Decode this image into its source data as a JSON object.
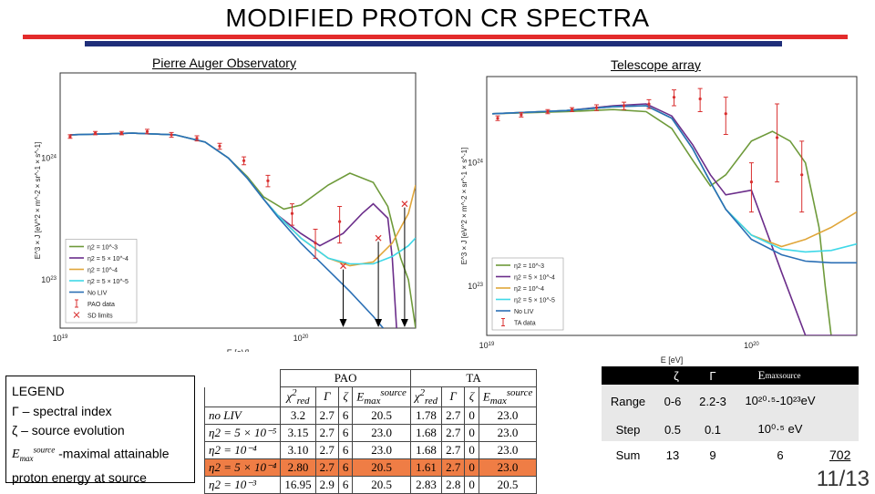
{
  "slide": {
    "title": "MODIFIED PROTON CR SPECTRA",
    "page": "11/13",
    "side_number": "702"
  },
  "colors": {
    "accent_red": "#e32b2b",
    "accent_navy": "#1f2e7a",
    "eta_1e-3": "#6e9a3a",
    "eta_5e-4": "#6b2d8a",
    "eta_1e-4": "#e0a63a",
    "eta_5e-5": "#3fd8e8",
    "no_liv": "#2a6fb5",
    "data": "#d93030",
    "highlight_row": "#ef7d45"
  },
  "chart_data": [
    {
      "type": "line",
      "title": "Pierre Auger Observatory",
      "xlabel": "E [eV]",
      "ylabel": "E^3 × J [eV^2 × m^-2 × sr^-1 × s^-1]",
      "x_ticks": [
        "10^19",
        "10^20"
      ],
      "y_ticks": [
        "10^24",
        "10^23"
      ],
      "xscale": "log",
      "yscale": "log",
      "xlim": [
        1e+19,
        3e+20
      ],
      "ylim": [
        4e+22,
        5e+24
      ],
      "legend_position": "bottom-left",
      "legend": [
        "η2 = 10^-3",
        "η2 = 5 × 10^-4",
        "η2 = 10^-4",
        "η2 = 5 × 10^-5",
        "No LIV",
        "PAO data",
        "SD limits"
      ],
      "series": [
        {
          "name": "η2 = 10^-3",
          "color_key": "eta_1e-3",
          "x": [
            1.1e+19,
            2e+19,
            3e+19,
            4e+19,
            5e+19,
            6e+19,
            7e+19,
            8.5e+19,
            1e+20,
            1.3e+20,
            1.6e+20,
            2e+20,
            2.3e+20,
            2.6e+20,
            2.8e+20,
            3e+20
          ],
          "y": [
            1.55e+24,
            1.6e+24,
            1.55e+24,
            1.35e+24,
            1e+24,
            7e+23,
            4.8e+23,
            3.8e+23,
            4.1e+23,
            6e+23,
            7.5e+23,
            6.3e+23,
            4e+23,
            1.5e+23,
            1e+23,
            4e+22
          ]
        },
        {
          "name": "η2 = 5 × 10^-4",
          "color_key": "eta_5e-4",
          "x": [
            1.1e+19,
            2e+19,
            3e+19,
            4e+19,
            5e+19,
            6e+19,
            7e+19,
            8e+19,
            1e+20,
            1.2e+20,
            1.5e+20,
            1.8e+20,
            2e+20,
            2.3e+20,
            2.4e+20,
            2.5e+20
          ],
          "y": [
            1.55e+24,
            1.6e+24,
            1.55e+24,
            1.35e+24,
            1e+24,
            6.8e+23,
            4.6e+23,
            3.4e+23,
            2.4e+23,
            1.9e+23,
            2.4e+23,
            3.5e+23,
            4.2e+23,
            3.2e+23,
            1.5e+23,
            4e+22
          ]
        },
        {
          "name": "η2 = 10^-4",
          "color_key": "eta_1e-4",
          "x": [
            1.1e+19,
            2e+19,
            3e+19,
            4e+19,
            5e+19,
            6e+19,
            7e+19,
            8e+19,
            1e+20,
            1.3e+20,
            1.6e+20,
            2e+20,
            2.4e+20,
            2.8e+20,
            3e+20
          ],
          "y": [
            1.55e+24,
            1.6e+24,
            1.55e+24,
            1.35e+24,
            1e+24,
            6.8e+23,
            4.6e+23,
            3.4e+23,
            2.2e+23,
            1.5e+23,
            1.3e+23,
            1.4e+23,
            2e+23,
            3.5e+23,
            6e+23
          ]
        },
        {
          "name": "η2 = 5 × 10^-5",
          "color_key": "eta_5e-5",
          "x": [
            1.1e+19,
            2e+19,
            3e+19,
            4e+19,
            5e+19,
            6e+19,
            7e+19,
            8e+19,
            1e+20,
            1.3e+20,
            1.6e+20,
            2e+20,
            2.4e+20,
            2.8e+20,
            3e+20
          ],
          "y": [
            1.55e+24,
            1.6e+24,
            1.55e+24,
            1.35e+24,
            1e+24,
            6.8e+23,
            4.6e+23,
            3.4e+23,
            2.2e+23,
            1.5e+23,
            1.35e+23,
            1.35e+23,
            1.55e+23,
            1.9e+23,
            2.2e+23
          ]
        },
        {
          "name": "No LIV",
          "color_key": "no_liv",
          "x": [
            1.1e+19,
            2e+19,
            3e+19,
            4e+19,
            5e+19,
            6e+19,
            7e+19,
            8e+19,
            1e+20,
            1.3e+20,
            1.6e+20,
            2e+20,
            2.2e+20
          ],
          "y": [
            1.55e+24,
            1.6e+24,
            1.55e+24,
            1.35e+24,
            1e+24,
            6.8e+23,
            4.6e+23,
            3.3e+23,
            2e+23,
            1.2e+23,
            8e+22,
            5e+22,
            4e+22
          ]
        }
      ],
      "pao_data": {
        "x": [
          1.1e+19,
          1.4e+19,
          1.8e+19,
          2.3e+19,
          2.9e+19,
          3.7e+19,
          4.6e+19,
          5.8e+19,
          7.3e+19,
          9.2e+19,
          1.15e+20,
          1.45e+20
        ],
        "y": [
          1.5e+24,
          1.6e+24,
          1.6e+24,
          1.65e+24,
          1.55e+24,
          1.45e+24,
          1.25e+24,
          9.5e+23,
          6.5e+23,
          3.5e+23,
          2e+23,
          3e+23
        ],
        "err_lo": [
          1.45e+24,
          1.55e+24,
          1.55e+24,
          1.58e+24,
          1.48e+24,
          1.38e+24,
          1.18e+24,
          8.8e+23,
          5.8e+23,
          2.8e+23,
          1.5e+23,
          2e+23
        ],
        "err_hi": [
          1.55e+24,
          1.65e+24,
          1.65e+24,
          1.72e+24,
          1.62e+24,
          1.52e+24,
          1.32e+24,
          1.02e+24,
          7.2e+23,
          4.2e+23,
          2.6e+23,
          4e+23
        ]
      },
      "sd_limits": {
        "x": [
          1.5e+20,
          2.1e+20,
          2.7e+20
        ],
        "y": [
          1.3e+23,
          2.2e+23,
          4.2e+23
        ]
      },
      "arrows_from_sd_limits": true
    },
    {
      "type": "line",
      "title": "Telescope array",
      "xlabel": "E [eV]",
      "ylabel": "E^3 × J [eV^2 × m^-2 × sr^-1 × s^-1]",
      "x_ticks": [
        "10^19",
        "10^20"
      ],
      "y_ticks": [
        "10^24",
        "10^23"
      ],
      "xscale": "log",
      "yscale": "log",
      "xlim": [
        1e+19,
        2.5e+20
      ],
      "ylim": [
        4e+22,
        5e+24
      ],
      "legend_position": "bottom-left",
      "legend": [
        "η2 = 10^-3",
        "η2 = 5 × 10^-4",
        "η2 = 10^-4",
        "η2 = 5 × 10^-5",
        "No LIV",
        "TA data"
      ],
      "series": [
        {
          "name": "η2 = 10^-3",
          "color_key": "eta_1e-3",
          "x": [
            1.05e+19,
            2e+19,
            3e+19,
            4e+19,
            5e+19,
            6e+19,
            7e+19,
            8e+19,
            1e+20,
            1.2e+20,
            1.4e+20,
            1.6e+20,
            1.8e+20,
            1.9e+20,
            2e+20
          ],
          "y": [
            2.5e+24,
            2.6e+24,
            2.7e+24,
            2.6e+24,
            1.9e+24,
            1.05e+24,
            6.5e+23,
            8e+23,
            1.5e+24,
            1.8e+24,
            1.5e+24,
            1e+24,
            3e+23,
            1e+23,
            4e+22
          ]
        },
        {
          "name": "η2 = 5 × 10^-4",
          "color_key": "eta_5e-4",
          "x": [
            1.05e+19,
            2e+19,
            3e+19,
            4e+19,
            5e+19,
            6e+19,
            7e+19,
            8e+19,
            1e+20,
            1.3e+20,
            1.6e+20,
            2e+20,
            2.5e+20
          ],
          "y": [
            2.5e+24,
            2.65e+24,
            2.9e+24,
            3e+24,
            2.4e+24,
            1.4e+24,
            8e+23,
            5.5e+23,
            6e+23,
            1.3e+23,
            4e+22,
            4e+22,
            4e+22
          ]
        },
        {
          "name": "η2 = 10^-4",
          "color_key": "eta_1e-4",
          "x": [
            1.05e+19,
            2e+19,
            3e+19,
            4e+19,
            5e+19,
            6e+19,
            7e+19,
            8e+19,
            1e+20,
            1.3e+20,
            1.6e+20,
            2e+20,
            2.5e+20
          ],
          "y": [
            2.5e+24,
            2.65e+24,
            2.85e+24,
            2.9e+24,
            2.3e+24,
            1.3e+24,
            7e+23,
            4.2e+23,
            2.6e+23,
            2.1e+23,
            2.4e+23,
            3e+23,
            4e+23
          ]
        },
        {
          "name": "η2 = 5 × 10^-5",
          "color_key": "eta_5e-5",
          "x": [
            1.05e+19,
            2e+19,
            3e+19,
            4e+19,
            5e+19,
            6e+19,
            7e+19,
            8e+19,
            1e+20,
            1.3e+20,
            1.6e+20,
            2e+20,
            2.5e+20
          ],
          "y": [
            2.5e+24,
            2.65e+24,
            2.85e+24,
            2.9e+24,
            2.3e+24,
            1.3e+24,
            7e+23,
            4.2e+23,
            2.6e+23,
            2e+23,
            1.9e+23,
            1.95e+23,
            2.2e+23
          ]
        },
        {
          "name": "No LIV",
          "color_key": "no_liv",
          "x": [
            1.05e+19,
            2e+19,
            3e+19,
            4e+19,
            5e+19,
            6e+19,
            7e+19,
            8e+19,
            1e+20,
            1.3e+20,
            1.6e+20,
            2e+20,
            2.5e+20
          ],
          "y": [
            2.5e+24,
            2.65e+24,
            2.85e+24,
            2.9e+24,
            2.3e+24,
            1.3e+24,
            7e+23,
            4.2e+23,
            2.4e+23,
            1.8e+23,
            1.6e+23,
            1.55e+23,
            1.55e+23
          ]
        }
      ],
      "ta_data": {
        "x": [
          1.1e+19,
          1.35e+19,
          1.7e+19,
          2.1e+19,
          2.6e+19,
          3.3e+19,
          4.1e+19,
          5.1e+19,
          6.4e+19,
          8e+19,
          1e+20,
          1.25e+20,
          1.55e+20
        ],
        "y": [
          2.3e+24,
          2.45e+24,
          2.6e+24,
          2.7e+24,
          2.8e+24,
          2.9e+24,
          3e+24,
          3.4e+24,
          3.3e+24,
          2.5e+24,
          7e+23,
          1.6e+24,
          8e+23
        ],
        "err_lo": [
          2.2e+24,
          2.35e+24,
          2.5e+24,
          2.6e+24,
          2.65e+24,
          2.7e+24,
          2.75e+24,
          2.9e+24,
          2.6e+24,
          1.7e+24,
          4e+23,
          7e+23,
          4e+23
        ],
        "err_hi": [
          2.4e+24,
          2.55e+24,
          2.7e+24,
          2.8e+24,
          2.95e+24,
          3.1e+24,
          3.25e+24,
          3.9e+24,
          4e+24,
          3.4e+24,
          1e+24,
          3e+24,
          1.5e+24
        ]
      }
    }
  ],
  "legend_box": {
    "heading": "LEGEND",
    "line1": "Γ – spectral index",
    "line2": "ζ – source evolution",
    "line3_suffix": "-maximal attainable",
    "line4": "proton energy at source"
  },
  "pao_table": {
    "group_headers": [
      "PAO",
      "TA"
    ],
    "col_headers": [
      "χ²red",
      "Γ",
      "ζ",
      "E_max^source"
    ],
    "rows": [
      {
        "label": "no LIV",
        "v": [
          "3.2",
          "2.7",
          "6",
          "20.5",
          "1.78",
          "2.7",
          "0",
          "23.0"
        ]
      },
      {
        "label": "η2 = 5 × 10⁻⁵",
        "v": [
          "3.15",
          "2.7",
          "6",
          "23.0",
          "1.68",
          "2.7",
          "0",
          "23.0"
        ]
      },
      {
        "label": "η2 = 10⁻⁴",
        "v": [
          "3.10",
          "2.7",
          "6",
          "23.0",
          "1.68",
          "2.7",
          "0",
          "23.0"
        ]
      },
      {
        "label": "η2 = 5 × 10⁻⁴",
        "v": [
          "2.80",
          "2.7",
          "6",
          "20.5",
          "1.61",
          "2.7",
          "0",
          "23.0"
        ]
      },
      {
        "label": "η2 = 10⁻³",
        "v": [
          "16.95",
          "2.9",
          "6",
          "20.5",
          "2.83",
          "2.8",
          "0",
          "20.5"
        ]
      }
    ]
  },
  "param_table": {
    "headers": [
      "ζ",
      "Γ",
      "E_max^source"
    ],
    "rows": [
      {
        "label": "Range",
        "zeta": "0-6",
        "gamma": "2.2-3",
        "emax": "10²⁰·⁵-10²³eV"
      },
      {
        "label": "Step",
        "zeta": "0.5",
        "gamma": "0.1",
        "emax": "10⁰·⁵ eV"
      },
      {
        "label": "Sum",
        "zeta": "13",
        "gamma": "9",
        "emax": "6"
      }
    ]
  }
}
